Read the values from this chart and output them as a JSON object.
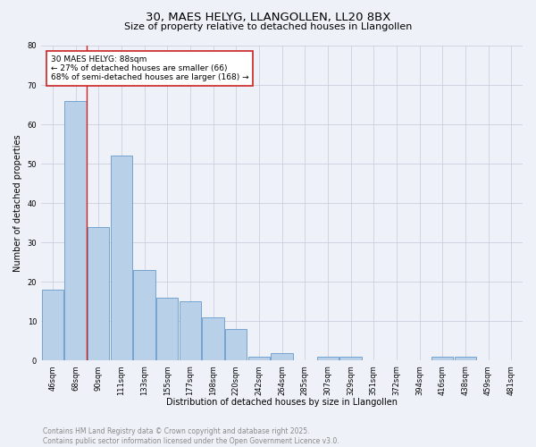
{
  "title": "30, MAES HELYG, LLANGOLLEN, LL20 8BX",
  "subtitle": "Size of property relative to detached houses in Llangollen",
  "xlabel": "Distribution of detached houses by size in Llangollen",
  "ylabel": "Number of detached properties",
  "bar_labels": [
    "46sqm",
    "68sqm",
    "90sqm",
    "111sqm",
    "133sqm",
    "155sqm",
    "177sqm",
    "198sqm",
    "220sqm",
    "242sqm",
    "264sqm",
    "285sqm",
    "307sqm",
    "329sqm",
    "351sqm",
    "372sqm",
    "394sqm",
    "416sqm",
    "438sqm",
    "459sqm",
    "481sqm"
  ],
  "bar_values": [
    18,
    66,
    34,
    52,
    23,
    16,
    15,
    11,
    8,
    1,
    2,
    0,
    1,
    1,
    0,
    0,
    0,
    1,
    1,
    0,
    0
  ],
  "bar_color": "#b8d0e8",
  "bar_edge_color": "#6699cc",
  "vline_color": "#cc2222",
  "annotation_text": "30 MAES HELYG: 88sqm\n← 27% of detached houses are smaller (66)\n68% of semi-detached houses are larger (168) →",
  "annotation_box_color": "#ffffff",
  "annotation_box_edge_color": "#cc2222",
  "ylim": [
    0,
    80
  ],
  "yticks": [
    0,
    10,
    20,
    30,
    40,
    50,
    60,
    70,
    80
  ],
  "grid_color": "#c8c8d8",
  "background_color": "#eef2f8",
  "footer_text": "Contains HM Land Registry data © Crown copyright and database right 2025.\nContains public sector information licensed under the Open Government Licence v3.0.",
  "title_fontsize": 9.5,
  "subtitle_fontsize": 8,
  "axis_label_fontsize": 7,
  "tick_fontsize": 6,
  "annotation_fontsize": 6.5,
  "footer_fontsize": 5.5
}
